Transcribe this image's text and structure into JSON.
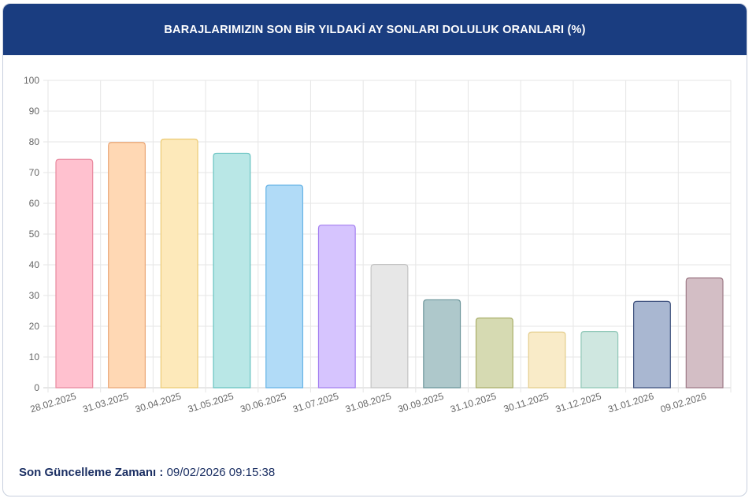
{
  "header": {
    "title": "BARAJLARIMIZIN SON BİR YILDAKİ AY SONLARI DOLULUK ORANLARI (%)"
  },
  "footer": {
    "label": "Son Güncelleme Zamanı :",
    "value": "09/02/2026 09:15:38"
  },
  "colors": {
    "header_bg": "#1a3d80",
    "footer_text": "#1b2f63"
  },
  "chart_data": {
    "type": "bar",
    "title": "BARAJLARIMIZIN SON BİR YILDAKİ AY SONLARI DOLULUK ORANLARI (%)",
    "xlabel": "",
    "ylabel": "",
    "ylim": [
      0,
      100
    ],
    "yticks": [
      0,
      10,
      20,
      30,
      40,
      50,
      60,
      70,
      80,
      90,
      100
    ],
    "grid": true,
    "legend": "none",
    "categories": [
      "28.02.2025",
      "31.03.2025",
      "30.04.2025",
      "31.05.2025",
      "30.06.2025",
      "31.07.2025",
      "31.08.2025",
      "30.09.2025",
      "31.10.2025",
      "30.11.2025",
      "31.12.2025",
      "31.01.2026",
      "09.02.2026"
    ],
    "values": [
      74.3,
      79.8,
      80.9,
      76.3,
      65.9,
      52.9,
      40.1,
      28.6,
      22.7,
      18.1,
      18.3,
      28.1,
      35.7
    ],
    "bar_fill_colors": [
      "#ffc1cf",
      "#ffd8b4",
      "#fde9ba",
      "#b9e7e6",
      "#b1dbf7",
      "#d6c4fe",
      "#e7e7e7",
      "#aec8cb",
      "#d6dab2",
      "#f9ebc8",
      "#cfe7e0",
      "#a9b7d1",
      "#d3bec5"
    ],
    "bar_border_colors": [
      "#e8889e",
      "#eaa676",
      "#ecca73",
      "#66c2c0",
      "#67b3e6",
      "#a47ff0",
      "#c4c4c4",
      "#6a9499",
      "#a9ae69",
      "#e4cd8c",
      "#8fc7b7",
      "#3c4f7c",
      "#9e7a86"
    ]
  }
}
